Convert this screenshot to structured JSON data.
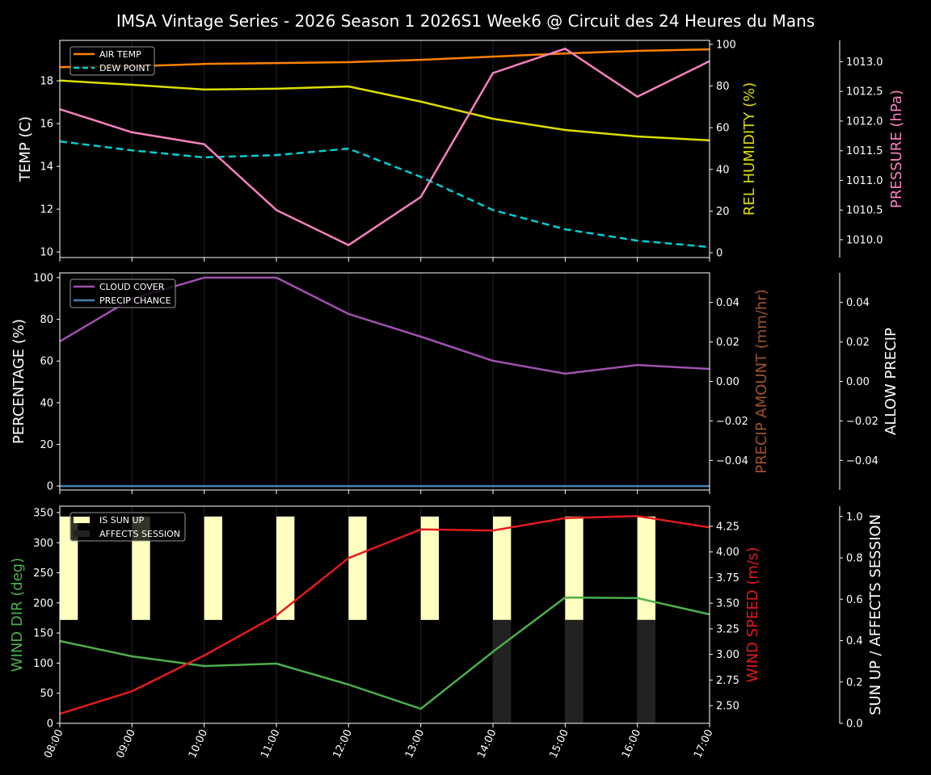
{
  "title": "IMSA Vintage Series - 2026 Season 1 2026S1 Week6 @ Circuit des 24 Heures du Mans",
  "chart_data": [
    {
      "type": "line",
      "x": [
        "08:00",
        "09:00",
        "10:00",
        "11:00",
        "12:00",
        "13:00",
        "14:00",
        "15:00",
        "16:00",
        "17:00"
      ],
      "axes": {
        "left": {
          "label": "TEMP (C)",
          "color": "#ffffff",
          "ylim": [
            9.74,
            19.89
          ],
          "ticks": [
            10,
            12,
            14,
            16,
            18
          ],
          "tick_labels": [
            "10",
            "12",
            "14",
            "16",
            "18"
          ]
        },
        "right": {
          "label": "REL HUMIDITY (%)",
          "color": "#dddd00",
          "ylim": [
            -2.3,
            101.9
          ],
          "ticks": [
            0,
            20,
            40,
            60,
            80,
            100
          ],
          "tick_labels": [
            "0",
            "20",
            "40",
            "60",
            "80",
            "100"
          ]
        },
        "right2": {
          "label": "PRESSURE (hPa)",
          "color": "#f781bf",
          "ylim": [
            1009.7,
            1013.36
          ],
          "ticks": [
            1010.0,
            1010.5,
            1011.0,
            1011.5,
            1012.0,
            1012.5,
            1013.0
          ],
          "tick_labels": [
            "1010.0",
            "1010.5",
            "1011.0",
            "1011.5",
            "1012.0",
            "1012.5",
            "1013.0"
          ]
        }
      },
      "series": [
        {
          "name": "AIR TEMP",
          "axis": "left",
          "color": "#ff8000",
          "dashed": false,
          "legend": true,
          "values": [
            18.64,
            18.68,
            18.79,
            18.83,
            18.87,
            18.98,
            19.13,
            19.28,
            19.4,
            19.47
          ]
        },
        {
          "name": "DEW POINT",
          "axis": "left",
          "color": "#00ced1",
          "dashed": true,
          "legend": true,
          "values": [
            15.17,
            14.75,
            14.42,
            14.53,
            14.83,
            13.51,
            11.96,
            11.06,
            10.53,
            10.23
          ]
        },
        {
          "axis": "right",
          "color": "#dddd00",
          "dashed": false,
          "legend": false,
          "values": [
            82.6,
            80.6,
            78.3,
            78.7,
            79.8,
            72.5,
            64.3,
            58.9,
            55.8,
            53.9
          ]
        },
        {
          "axis": "right2",
          "color": "#f781bf",
          "dashed": false,
          "legend": false,
          "values": [
            1012.2,
            1011.81,
            1011.61,
            1010.5,
            1009.91,
            1010.72,
            1012.81,
            1013.22,
            1012.41,
            1013.01
          ]
        }
      ],
      "grid": "vertical",
      "legend_position": "upper-left"
    },
    {
      "type": "line",
      "x": [
        "08:00",
        "09:00",
        "10:00",
        "11:00",
        "12:00",
        "13:00",
        "14:00",
        "15:00",
        "16:00",
        "17:00"
      ],
      "axes": {
        "left": {
          "label": "PERCENTAGE (%)",
          "color": "#ffffff",
          "ylim": [
            -1.9,
            102.3
          ],
          "ticks": [
            0,
            20,
            40,
            60,
            80,
            100
          ],
          "tick_labels": [
            "0",
            "20",
            "40",
            "60",
            "80",
            "100"
          ]
        },
        "right": {
          "label": "PRECIP AMOUNT (mm/hr)",
          "color": "#a0522d",
          "ylim": [
            -0.055,
            0.055
          ],
          "ticks": [
            -0.04,
            -0.02,
            0,
            0.02,
            0.04
          ],
          "tick_labels": [
            "−0.04",
            "−0.02",
            "0.00",
            "0.02",
            "0.04"
          ]
        },
        "right2": {
          "label": "ALLOW PRECIP",
          "color": "#ffffff",
          "ylim": [
            -0.055,
            0.055
          ],
          "ticks": [
            -0.04,
            -0.02,
            0,
            0.02,
            0.04
          ],
          "tick_labels": [
            "−0.04",
            "−0.02",
            "0.00",
            "0.02",
            "0.04"
          ]
        }
      },
      "series": [
        {
          "name": "CLOUD COVER",
          "axis": "left",
          "color": "#a050b0",
          "dashed": false,
          "legend": true,
          "values": [
            69.4,
            89.9,
            100,
            100,
            82.6,
            71.7,
            60.1,
            53.9,
            58.1,
            56.2
          ]
        },
        {
          "name": "PRECIP CHANCE",
          "axis": "left",
          "color": "#4682b4",
          "dashed": false,
          "legend": true,
          "values": [
            0,
            0,
            0,
            0,
            0,
            0,
            0,
            0,
            0,
            0
          ]
        }
      ],
      "grid": "vertical",
      "legend_position": "upper-left"
    },
    {
      "type": "line",
      "x": [
        "08:00",
        "09:00",
        "10:00",
        "11:00",
        "12:00",
        "13:00",
        "14:00",
        "15:00",
        "16:00",
        "17:00"
      ],
      "axes": {
        "left": {
          "label": "WIND DIR (deg)",
          "color": "#4daf4a",
          "ylim": [
            0,
            360.7
          ],
          "ticks": [
            0,
            50,
            100,
            150,
            200,
            250,
            300,
            350
          ],
          "tick_labels": [
            "0",
            "50",
            "100",
            "150",
            "200",
            "250",
            "300",
            "350"
          ]
        },
        "right": {
          "label": "WIND SPEED (m/s)",
          "color": "#e41a1c",
          "ylim": [
            2.327,
            4.447
          ],
          "ticks": [
            2.5,
            2.75,
            3.0,
            3.25,
            3.5,
            3.75,
            4.0,
            4.25
          ],
          "tick_labels": [
            "2.50",
            "2.75",
            "3.00",
            "3.25",
            "3.50",
            "3.75",
            "4.00",
            "4.25"
          ]
        },
        "right2": {
          "label": "SUN UP / AFFECTS SESSION",
          "color": "#ffffff",
          "ylim": [
            0,
            1.05
          ],
          "ticks": [
            0,
            0.2,
            0.4,
            0.6,
            0.8,
            1.0
          ],
          "tick_labels": [
            "0.0",
            "0.2",
            "0.4",
            "0.6",
            "0.8",
            "1.0"
          ]
        }
      },
      "series": [
        {
          "axis": "left",
          "color": "#4daf4a",
          "dashed": false,
          "legend": false,
          "values": [
            136.8,
            111.3,
            95.2,
            99.2,
            64.4,
            24.1,
            119,
            209,
            208,
            181
          ]
        },
        {
          "axis": "right",
          "color": "#e41a1c",
          "dashed": false,
          "legend": false,
          "values": [
            2.42,
            2.64,
            2.99,
            3.38,
            3.94,
            4.22,
            4.21,
            4.33,
            4.35,
            4.24
          ]
        }
      ],
      "bars": [
        {
          "name": "IS SUN UP",
          "color": "#ffffc0",
          "values": [
            1,
            1,
            1,
            1,
            1,
            1,
            1,
            1,
            1,
            0
          ]
        },
        {
          "name": "AFFECTS SESSION",
          "color": "#222222",
          "values": [
            0,
            0,
            0,
            0,
            0,
            0,
            1,
            1,
            1,
            0
          ]
        }
      ],
      "grid": "vertical",
      "legend_position": "upper-left"
    }
  ]
}
